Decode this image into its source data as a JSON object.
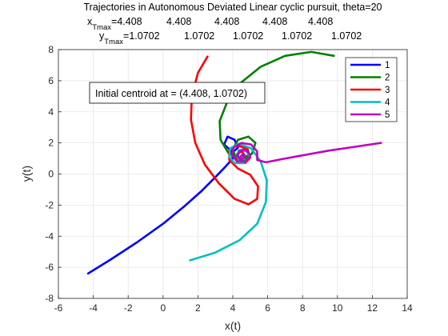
{
  "chart_data": {
    "type": "line",
    "title": "Trajectories in Autonomous Deviated Linear cyclic pursuit, theta=20",
    "subtitle_x": {
      "prefix": "x",
      "subscript": "Tmax",
      "eq": "=",
      "values": [
        "4.408",
        "4.408",
        "4.408",
        "4.408",
        "4.408"
      ]
    },
    "subtitle_y": {
      "prefix": "y",
      "subscript": "Tmax",
      "eq": "=",
      "values": [
        "1.0702",
        "1.0702",
        "1.0702",
        "1.0702",
        "1.0702"
      ]
    },
    "xlabel": "x(t)",
    "ylabel": "y(t)",
    "xlim": [
      -6,
      14
    ],
    "ylim": [
      -8,
      8
    ],
    "xticks": [
      "-6",
      "-4",
      "-2",
      "0",
      "2",
      "4",
      "6",
      "8",
      "10",
      "12",
      "14"
    ],
    "yticks": [
      "-8",
      "-6",
      "-4",
      "-2",
      "0",
      "2",
      "4",
      "6",
      "8"
    ],
    "grid": true,
    "legend_position": "top-right",
    "annotation": "Initial centroid at = (4.408,  1.0702)",
    "centroid": [
      4.408,
      1.0702
    ],
    "series": [
      {
        "name": "1",
        "color": "#0000ff",
        "points": [
          [
            -4.3,
            -6.4
          ],
          [
            -3,
            -5.5
          ],
          [
            -1.5,
            -4.4
          ],
          [
            0,
            -3.2
          ],
          [
            1.2,
            -2.1
          ],
          [
            2.2,
            -1.1
          ],
          [
            3.0,
            -0.2
          ],
          [
            3.6,
            0.5
          ],
          [
            4.0,
            1.0
          ],
          [
            3.9,
            1.5
          ],
          [
            3.5,
            1.9
          ],
          [
            3.7,
            2.4
          ],
          [
            4.1,
            2.2
          ],
          [
            4.3,
            1.7
          ],
          [
            4.0,
            1.4
          ],
          [
            4.05,
            1.05
          ],
          [
            4.4,
            0.75
          ],
          [
            4.8,
            0.9
          ],
          [
            4.9,
            1.3
          ],
          [
            4.7,
            1.6
          ],
          [
            4.35,
            1.5
          ],
          [
            4.25,
            1.15
          ],
          [
            4.45,
            0.9
          ],
          [
            4.65,
            1.05
          ],
          [
            4.6,
            1.3
          ],
          [
            4.408,
            1.0702
          ]
        ]
      },
      {
        "name": "2",
        "color": "#008000",
        "points": [
          [
            9.8,
            7.6
          ],
          [
            8.5,
            7.85
          ],
          [
            7,
            7.6
          ],
          [
            5.6,
            6.9
          ],
          [
            4.5,
            5.9
          ],
          [
            3.7,
            4.7
          ],
          [
            3.25,
            3.4
          ],
          [
            3.3,
            2.2
          ],
          [
            3.75,
            1.35
          ],
          [
            4.45,
            0.95
          ],
          [
            5.1,
            1.3
          ],
          [
            5.3,
            2.0
          ],
          [
            4.9,
            2.4
          ],
          [
            4.3,
            2.2
          ],
          [
            4.0,
            1.6
          ],
          [
            4.15,
            1.05
          ],
          [
            4.65,
            0.8
          ],
          [
            4.95,
            1.25
          ],
          [
            4.75,
            1.6
          ],
          [
            4.35,
            1.45
          ],
          [
            4.3,
            1.1
          ],
          [
            4.55,
            0.95
          ],
          [
            4.65,
            1.2
          ],
          [
            4.408,
            1.0702
          ]
        ]
      },
      {
        "name": "3",
        "color": "#ff0000",
        "points": [
          [
            2.55,
            7.55
          ],
          [
            2.0,
            6.5
          ],
          [
            1.65,
            5.0
          ],
          [
            1.6,
            3.5
          ],
          [
            1.85,
            2.0
          ],
          [
            2.4,
            0.6
          ],
          [
            3.2,
            -0.6
          ],
          [
            4.1,
            -1.6
          ],
          [
            4.9,
            -1.95
          ],
          [
            5.4,
            -1.6
          ],
          [
            5.45,
            -0.8
          ],
          [
            5.0,
            -0.05
          ],
          [
            4.3,
            0.35
          ],
          [
            3.8,
            0.9
          ],
          [
            3.8,
            1.55
          ],
          [
            4.25,
            1.85
          ],
          [
            4.85,
            1.6
          ],
          [
            5.0,
            1.05
          ],
          [
            4.7,
            0.7
          ],
          [
            4.3,
            0.85
          ],
          [
            4.2,
            1.25
          ],
          [
            4.5,
            1.45
          ],
          [
            4.7,
            1.2
          ],
          [
            4.55,
            0.95
          ],
          [
            4.408,
            1.0702
          ]
        ]
      },
      {
        "name": "4",
        "color": "#00bfbf",
        "points": [
          [
            1.55,
            -5.55
          ],
          [
            3,
            -5.05
          ],
          [
            4.4,
            -4.25
          ],
          [
            5.4,
            -3.2
          ],
          [
            5.9,
            -1.8
          ],
          [
            5.95,
            -0.4
          ],
          [
            5.6,
            0.8
          ],
          [
            5.05,
            1.65
          ],
          [
            4.35,
            1.95
          ],
          [
            3.85,
            1.65
          ],
          [
            3.8,
            1.1
          ],
          [
            4.1,
            0.7
          ],
          [
            4.6,
            0.7
          ],
          [
            4.95,
            1.05
          ],
          [
            4.85,
            1.5
          ],
          [
            4.45,
            1.55
          ],
          [
            4.2,
            1.25
          ],
          [
            4.35,
            0.9
          ],
          [
            4.6,
            0.95
          ],
          [
            4.65,
            1.2
          ],
          [
            4.408,
            1.0702
          ]
        ]
      },
      {
        "name": "5",
        "color": "#bf00bf",
        "points": [
          [
            12.5,
            2.0
          ],
          [
            11,
            1.75
          ],
          [
            9.5,
            1.5
          ],
          [
            8,
            1.2
          ],
          [
            6.8,
            0.95
          ],
          [
            5.9,
            0.75
          ],
          [
            5.4,
            0.9
          ],
          [
            5.4,
            1.45
          ],
          [
            5.05,
            1.9
          ],
          [
            4.5,
            2.0
          ],
          [
            4.05,
            1.7
          ],
          [
            3.95,
            1.2
          ],
          [
            4.25,
            0.8
          ],
          [
            4.75,
            0.8
          ],
          [
            5.0,
            1.15
          ],
          [
            4.85,
            1.5
          ],
          [
            4.45,
            1.5
          ],
          [
            4.25,
            1.2
          ],
          [
            4.45,
            0.9
          ],
          [
            4.65,
            1.05
          ],
          [
            4.6,
            1.3
          ],
          [
            4.408,
            1.0702
          ]
        ]
      }
    ]
  }
}
